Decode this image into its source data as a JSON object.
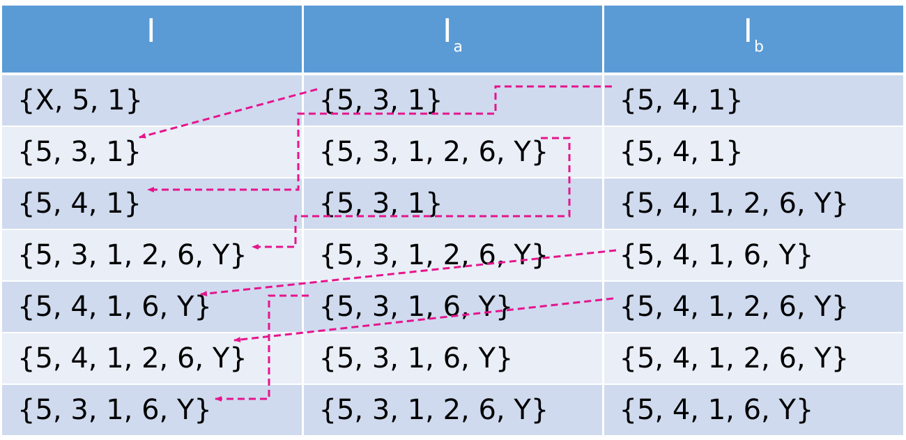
{
  "table": {
    "headers": [
      {
        "main": "I",
        "sub": ""
      },
      {
        "main": "I",
        "sub": "a"
      },
      {
        "main": "I",
        "sub": "b"
      }
    ],
    "rows": [
      [
        "{X, 5, 1}",
        "{5, 3, 1}",
        "{5, 4, 1}"
      ],
      [
        "{5, 3, 1}",
        "{5, 3, 1, 2, 6, Y}",
        "{5, 4, 1}"
      ],
      [
        "{5, 4, 1}",
        "{5, 3, 1}",
        "{5, 4, 1, 2, 6, Y}"
      ],
      [
        "{5, 3, 1, 2, 6, Y}",
        "{5, 3, 1, 2, 6, Y}",
        "{5, 4, 1, 6, Y}"
      ],
      [
        "{5, 4, 1, 6, Y}",
        "{5, 3, 1, 6, Y}",
        "{5, 4, 1, 2, 6, Y}"
      ],
      [
        "{5, 4, 1, 2, 6, Y}",
        "{5, 3, 1, 6, Y}",
        "{5, 4, 1, 2, 6, Y}"
      ],
      [
        "{5, 3, 1, 6, Y}",
        "{5, 3, 1, 2, 6, Y}",
        "{5, 4, 1, 6, Y}"
      ]
    ]
  },
  "colors": {
    "header_bg": "#5b9bd5",
    "row_odd_bg": "#cfdaee",
    "row_even_bg": "#e9eef7",
    "arrow": "#e6148c"
  }
}
